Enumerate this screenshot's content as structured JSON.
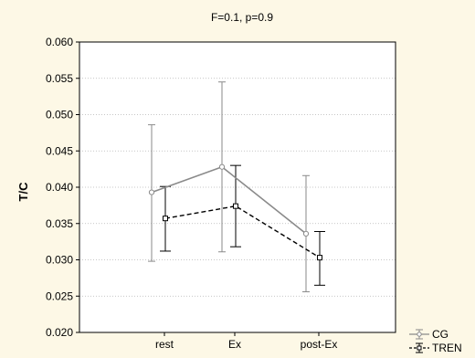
{
  "chart_data": {
    "type": "line",
    "title": "F=0.1, p=0.9",
    "xlabel": "",
    "ylabel": "T/C",
    "categories": [
      "rest",
      "Ex",
      "post-Ex"
    ],
    "ylim": [
      0.02,
      0.06
    ],
    "yticks": [
      "0.020",
      "0.025",
      "0.030",
      "0.035",
      "0.040",
      "0.045",
      "0.050",
      "0.055",
      "0.060"
    ],
    "grid": true,
    "legend_position": "bottom-right",
    "series": [
      {
        "name": "CG",
        "values": [
          0.0393,
          0.0428,
          0.0336
        ],
        "error_low": [
          0.0298,
          0.0311,
          0.0256
        ],
        "error_high": [
          0.0486,
          0.0545,
          0.0416
        ],
        "line_style": "solid",
        "marker": "circle",
        "color": "#8a8a8a"
      },
      {
        "name": "TREN",
        "values": [
          0.0357,
          0.0374,
          0.0303
        ],
        "error_low": [
          0.0312,
          0.0318,
          0.0265
        ],
        "error_high": [
          0.0401,
          0.043,
          0.0339
        ],
        "line_style": "dashed",
        "marker": "square",
        "color": "#000000"
      }
    ]
  }
}
